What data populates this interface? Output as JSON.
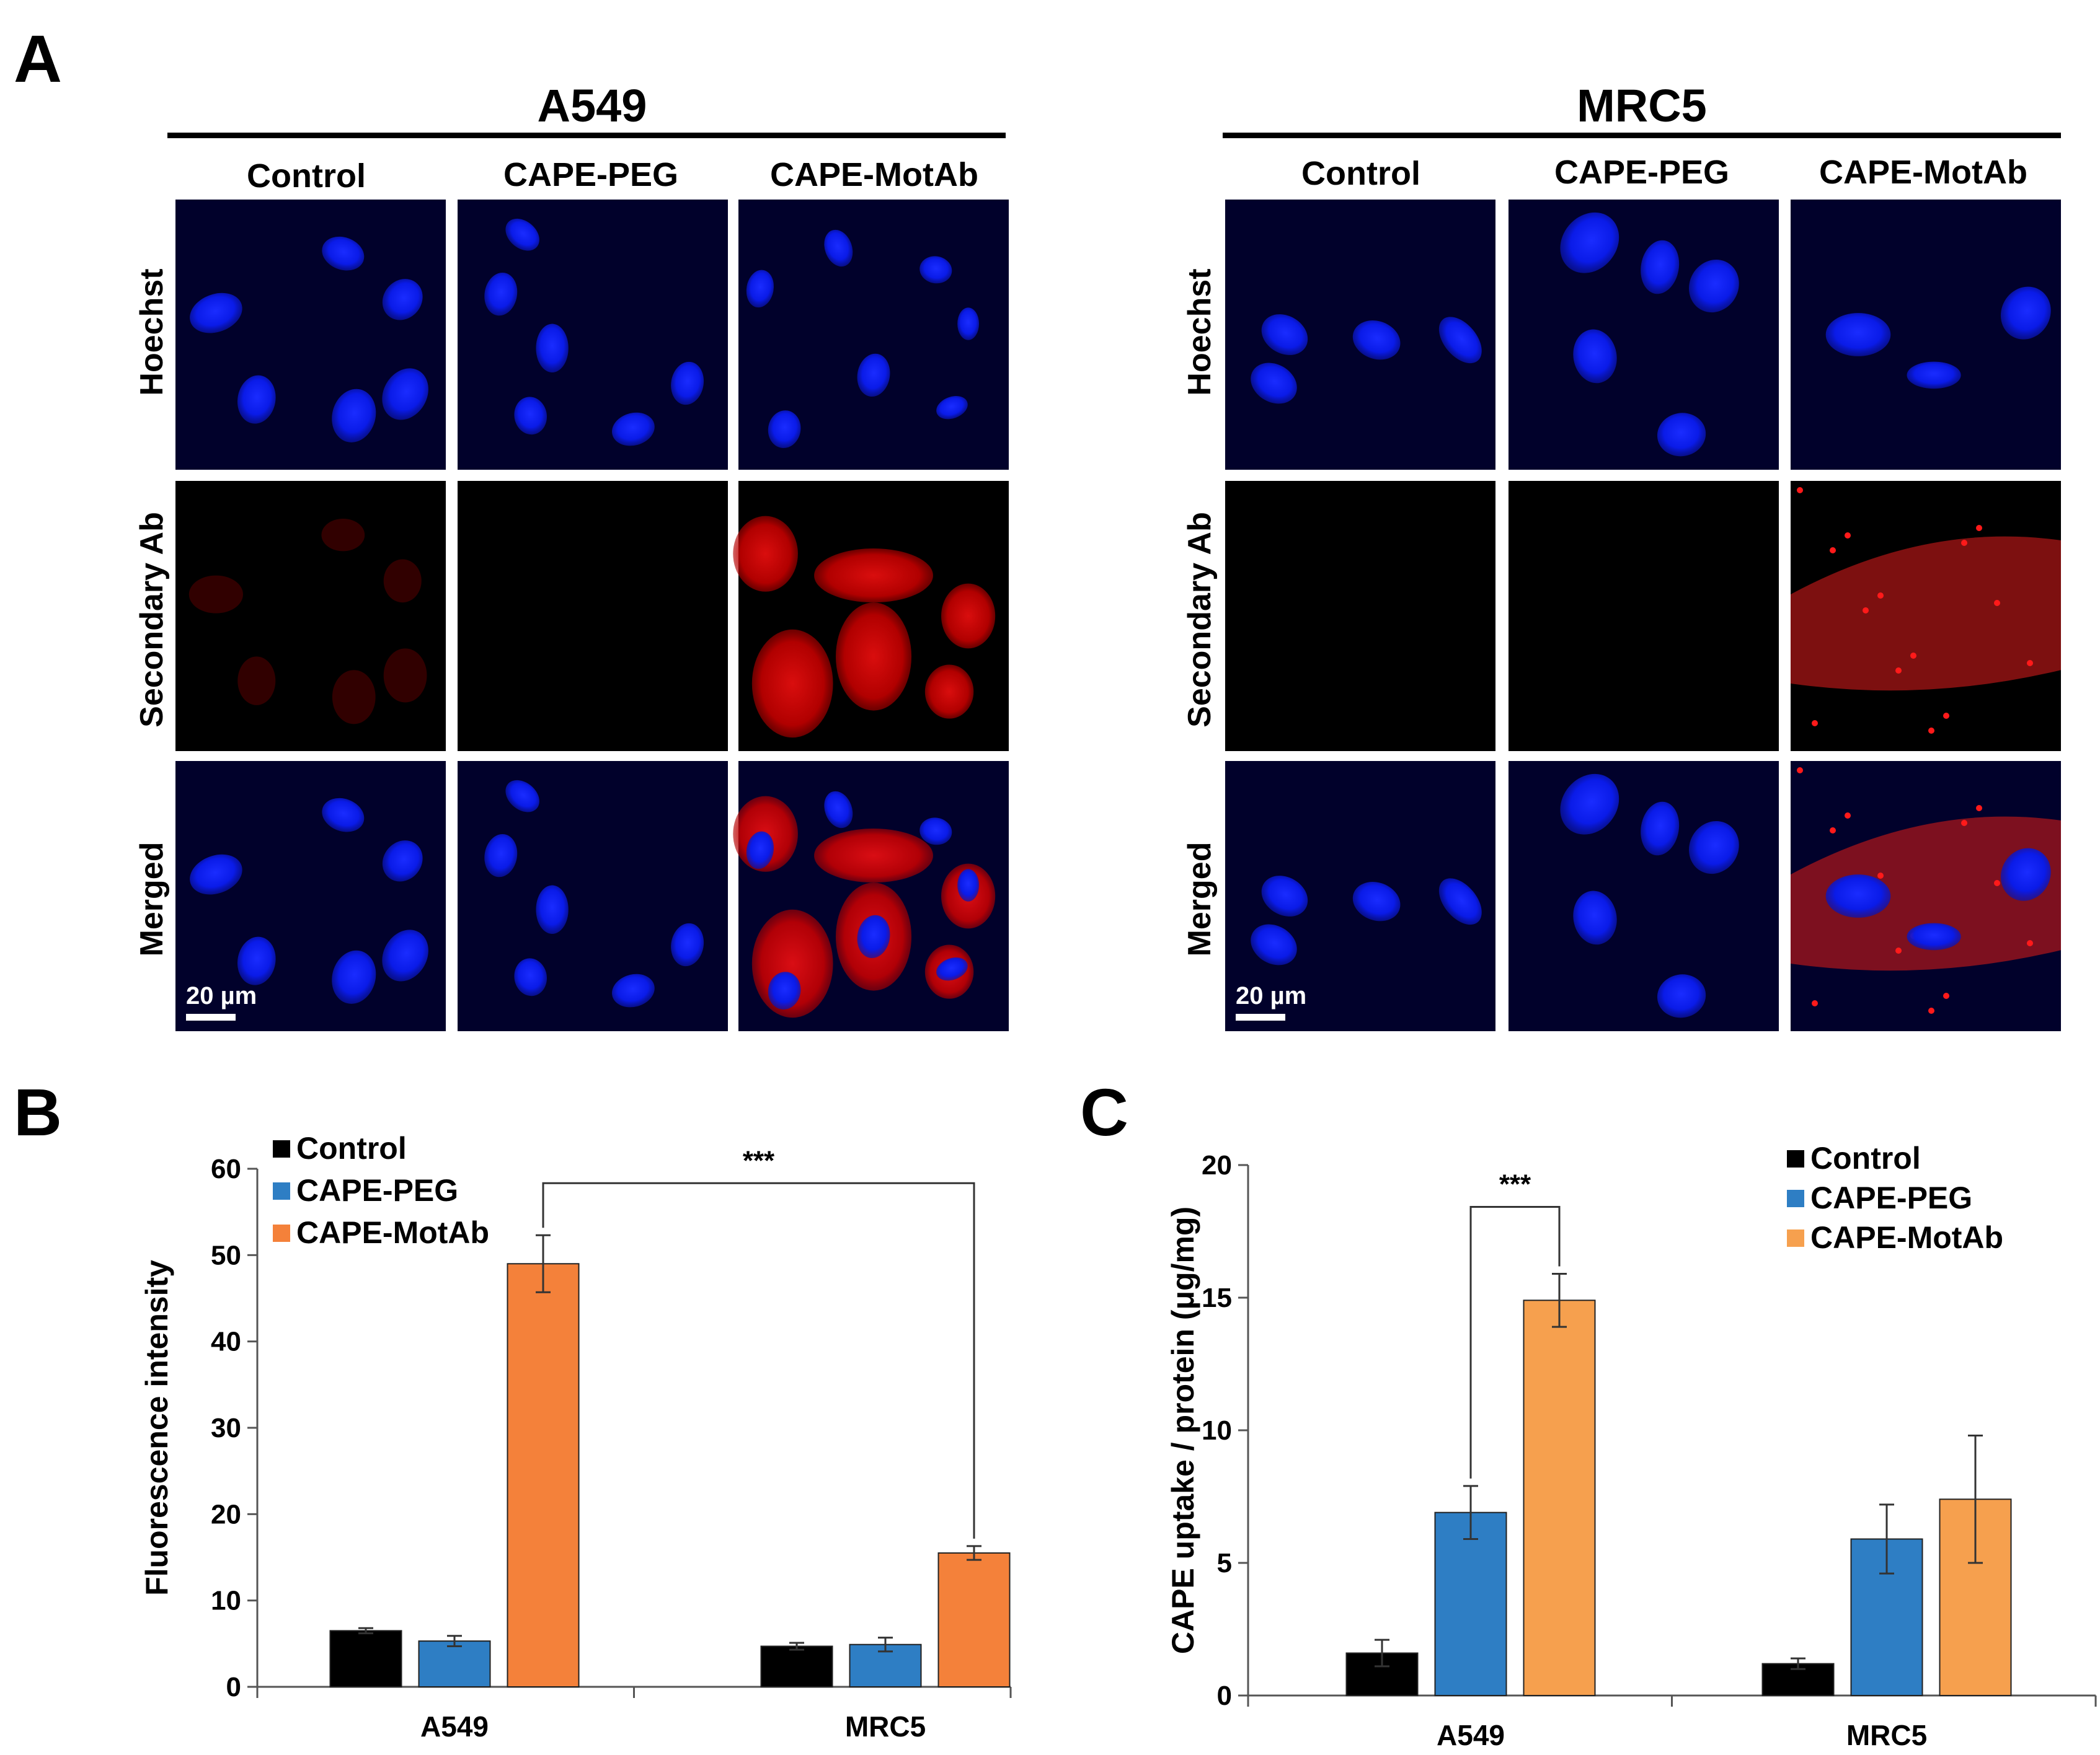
{
  "panels": {
    "a": "A",
    "b": "B",
    "c": "C"
  },
  "micrographs": {
    "cell_lines": [
      "A549",
      "MRC5"
    ],
    "columns": [
      "Control",
      "CAPE-PEG",
      "CAPE-MotAb"
    ],
    "rows": [
      "Hoechst",
      "Secondary Ab",
      "Merged"
    ],
    "scale_bar": "20 µm"
  },
  "chart_data": [
    {
      "type": "bar",
      "categories": [
        "A549",
        "MRC5"
      ],
      "ylabel": "Fluorescence intensity",
      "ylim": [
        0,
        60
      ],
      "yticks": [
        0,
        10,
        20,
        30,
        40,
        50,
        60
      ],
      "legend_position": "top-left",
      "series": [
        {
          "name": "Control",
          "color": "#000000",
          "values": [
            6.5,
            4.7
          ],
          "errors": [
            0.3,
            0.4
          ]
        },
        {
          "name": "CAPE-PEG",
          "color": "#2e7ec4",
          "values": [
            5.3,
            4.9
          ],
          "errors": [
            0.6,
            0.8
          ]
        },
        {
          "name": "CAPE-MotAb",
          "color": "#f4813a",
          "values": [
            49.0,
            15.5
          ],
          "errors": [
            3.3,
            0.8
          ]
        }
      ],
      "significance": {
        "label": "***",
        "from": [
          0,
          2
        ],
        "to": [
          1,
          2
        ]
      }
    },
    {
      "type": "bar",
      "categories": [
        "A549",
        "MRC5"
      ],
      "ylabel": "CAPE uptake / protein (μg/mg)",
      "ylim": [
        0,
        20
      ],
      "yticks": [
        0,
        5,
        10,
        15,
        20
      ],
      "legend_position": "top-right",
      "series": [
        {
          "name": "Control",
          "color": "#000000",
          "values": [
            1.6,
            1.2
          ],
          "errors": [
            0.5,
            0.2
          ]
        },
        {
          "name": "CAPE-PEG",
          "color": "#2e7ec4",
          "values": [
            6.9,
            5.9
          ],
          "errors": [
            1.0,
            1.3
          ]
        },
        {
          "name": "CAPE-MotAb",
          "color": "#f6a04e",
          "values": [
            14.9,
            7.4
          ],
          "errors": [
            1.0,
            2.4
          ]
        }
      ],
      "significance": {
        "label": "***",
        "from": [
          0,
          1
        ],
        "to": [
          0,
          2
        ]
      }
    }
  ]
}
